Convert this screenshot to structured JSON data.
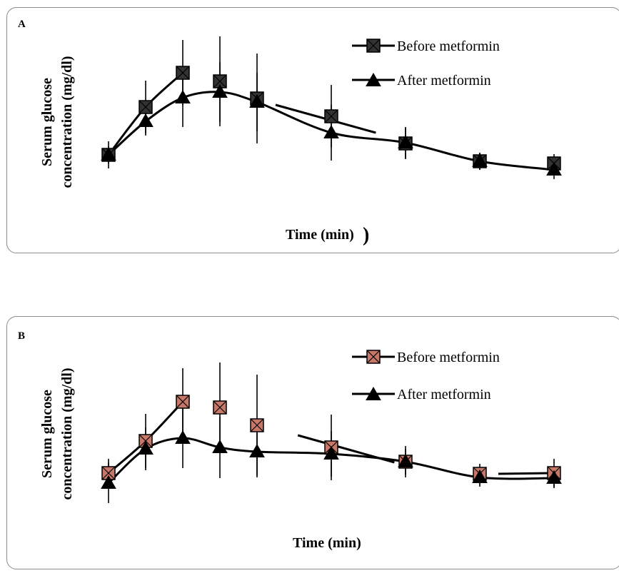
{
  "chart_data": [
    {
      "type": "line",
      "panel_label": "A",
      "xlabel": "Time (min)",
      "ylabel": [
        "Serum glucose",
        "concentration (mg/dl)"
      ],
      "x": [
        0,
        1,
        2,
        3,
        4,
        6,
        8,
        10,
        12
      ],
      "series": [
        {
          "name": "Before metformin",
          "marker": "square-x",
          "marker_fill": "#333333",
          "values": [
            217,
            150,
            102,
            114,
            138,
            163,
            201,
            226,
            229
          ],
          "err": [
            19,
            37,
            46,
            63,
            63,
            44,
            22,
            12,
            13
          ]
        },
        {
          "name": "After metformin",
          "marker": "triangle",
          "values": [
            217,
            170,
            137,
            129,
            143,
            186,
            200,
            226,
            238
          ],
          "err": [
            12,
            20,
            41,
            42,
            41,
            39,
            22,
            12,
            13
          ]
        }
      ],
      "segments": [
        {
          "series": 0,
          "from": 0,
          "to": 2
        },
        {
          "series": 0,
          "line": [
            [
              4.5,
              147
            ],
            [
              7.2,
              186
            ]
          ]
        },
        {
          "series": 1,
          "from": 0,
          "to": 8
        }
      ]
    },
    {
      "type": "line",
      "panel_label": "B",
      "xlabel": "Time (min)",
      "ylabel": [
        "Serum glucose",
        "concentration (mg/dl)"
      ],
      "x": [
        0,
        1,
        2,
        3,
        4,
        6,
        8,
        10,
        12
      ],
      "series": [
        {
          "name": "Before metformin",
          "marker": "square-x",
          "marker_fill": "#c87868",
          "values": [
            663,
            618,
            563,
            571,
            596,
            627,
            647,
            664,
            663
          ],
          "err": [
            20,
            38,
            47,
            63,
            71,
            46,
            22,
            14,
            20
          ]
        },
        {
          "name": "After metformin",
          "marker": "triangle",
          "values": [
            677,
            629,
            614,
            627,
            633,
            636,
            647,
            669,
            670
          ],
          "err": [
            28,
            30,
            42,
            43,
            36,
            32,
            18,
            13,
            14
          ]
        }
      ],
      "segments": [
        {
          "series": 0,
          "from": 0,
          "to": 2
        },
        {
          "series": 0,
          "line": [
            [
              5.1,
              610
            ],
            [
              7.7,
              648
            ]
          ]
        },
        {
          "series": 0,
          "line": [
            [
              10.5,
              664
            ],
            [
              12,
              663
            ]
          ]
        },
        {
          "series": 1,
          "from": 0,
          "to": 8
        }
      ]
    }
  ]
}
